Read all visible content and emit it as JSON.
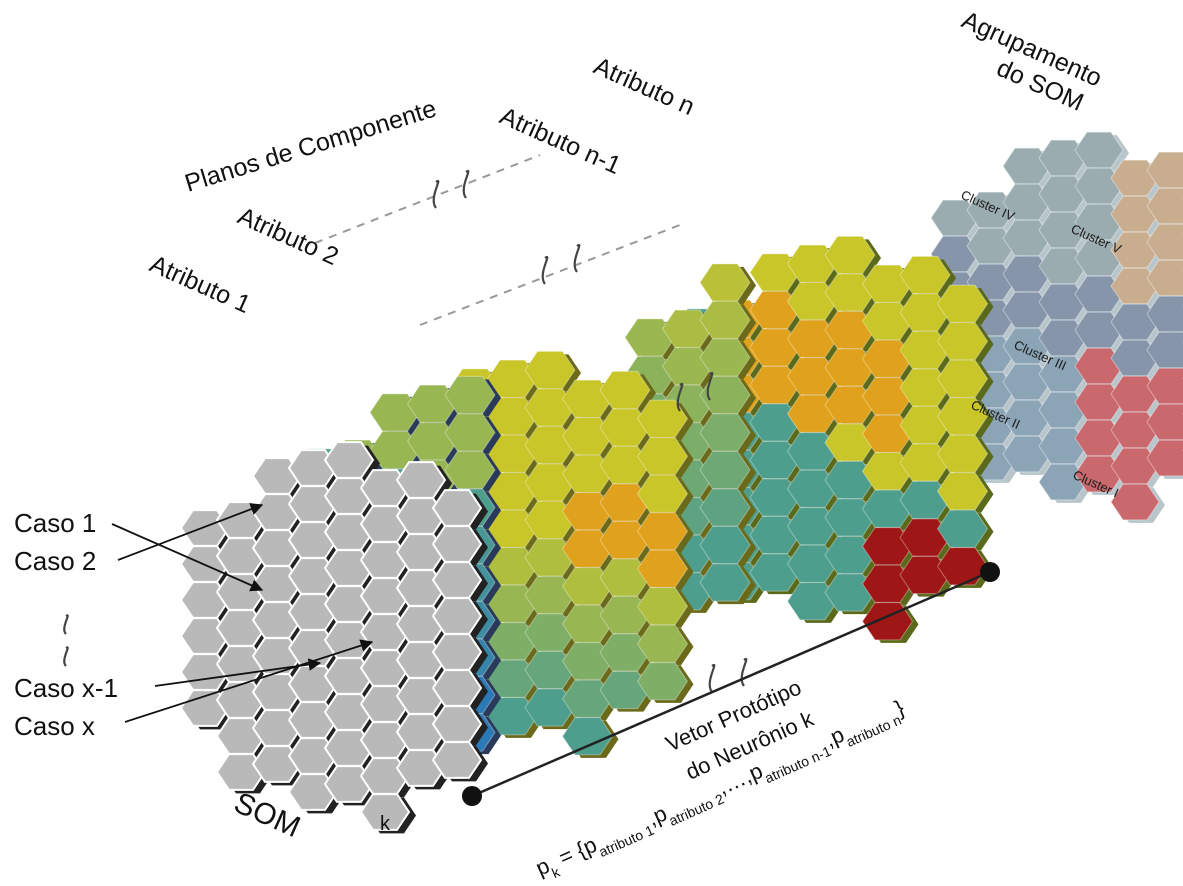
{
  "planes_title": "Planos de Componente",
  "attributes": {
    "a1": "Atributo 1",
    "a2": "Atributo 2",
    "an1": "Atributo n-1",
    "an": "Atributo n"
  },
  "grouping_title": [
    "Agrupamento",
    "do SOM"
  ],
  "clusters": [
    "Cluster I",
    "Cluster II",
    "Cluster III",
    "Cluster IV",
    "Cluster V"
  ],
  "cases": [
    "Caso 1",
    "Caso 2",
    "Caso x-1",
    "Caso x"
  ],
  "som_label": "SOM",
  "neuron_label": "k",
  "prototype_label": [
    "Vetor Protótipo",
    "do Neurônio k"
  ],
  "formula": {
    "lhs": "p",
    "lhs_sub": "k",
    "eq": " = {",
    "terms": [
      {
        "p": "p",
        "sub": "atributo 1"
      },
      {
        "p": "p",
        "sub": "atributo 2"
      },
      {
        "p": "p",
        "sub": "atributo n-1"
      },
      {
        "p": "p",
        "sub": "atributo n"
      }
    ],
    "sep": ",",
    "ellipsis": ",…,",
    "close": "}"
  },
  "colors": {
    "som_grey": "#b9b9b9",
    "som_edge": "#222222",
    "yellow": "#c9c62a",
    "teal": "#4e9e8e",
    "orange": "#e0a21c",
    "red": "#9e1616",
    "blue": "#2c79b8",
    "cluster_i": "#c9686d",
    "cluster_ii": "#8ba4b6",
    "cluster_iii": "#8795ab",
    "cluster_iv": "#9aacb0",
    "cluster_v": "#c8ad8f"
  }
}
